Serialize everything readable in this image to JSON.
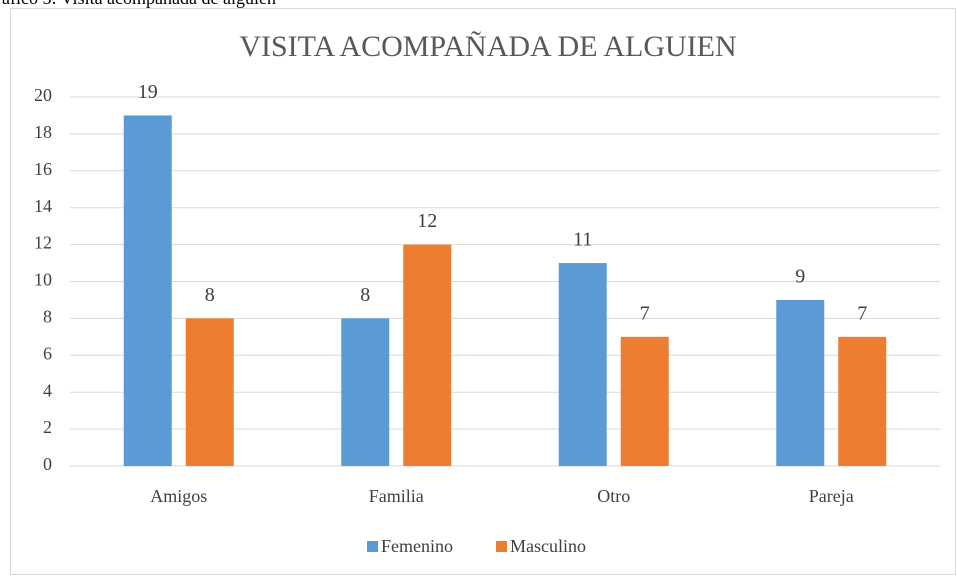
{
  "caption": "ráfico 5: Visita acompañada de alguien",
  "chart_data": {
    "type": "bar",
    "title": "VISITA ACOMPAÑADA DE ALGUIEN",
    "categories": [
      "Amigos",
      "Familia",
      "Otro",
      "Pareja"
    ],
    "series": [
      {
        "name": "Femenino",
        "color": "#5b9bd5",
        "values": [
          19,
          8,
          11,
          9
        ]
      },
      {
        "name": "Masculino",
        "color": "#ed7d31",
        "values": [
          8,
          12,
          7,
          7
        ]
      }
    ],
    "ylim": [
      0,
      20
    ],
    "yticks": [
      0,
      2,
      4,
      6,
      8,
      10,
      12,
      14,
      16,
      18,
      20
    ],
    "grid": true,
    "legend": "bottom"
  }
}
